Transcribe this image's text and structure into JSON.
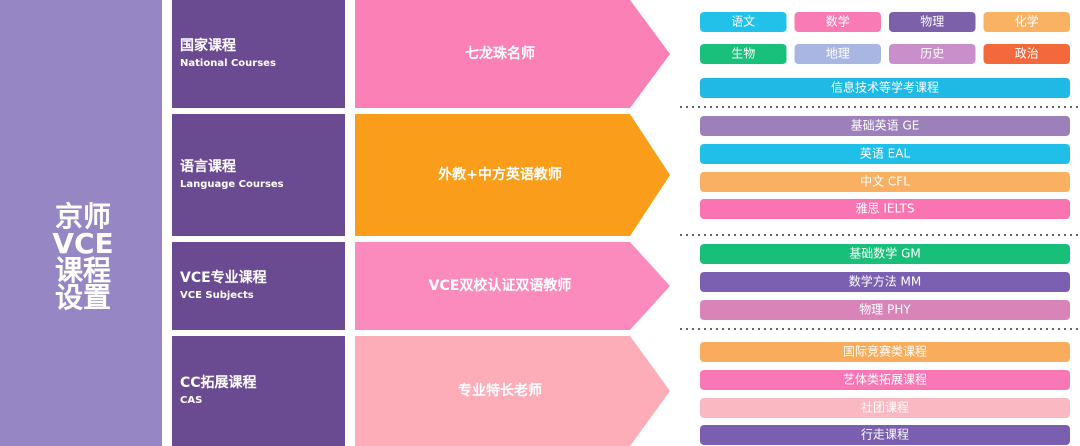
{
  "title": "京师VCE课程设置",
  "rows": [
    {
      "name": "国家课程",
      "name_en": "National Courses",
      "teacher": "七龙珠名师",
      "courses": [
        [
          "语文",
          "数学",
          "物理",
          "化学"
        ],
        [
          "生物",
          "地理",
          "历史",
          "政治"
        ],
        [
          "信息技术等学考课程"
        ]
      ]
    },
    {
      "name": "语言课程",
      "name_en": "Language Courses",
      "teacher": "外教+中方英语教师",
      "courses": [
        [
          "基础英语 GE"
        ],
        [
          "英语 EAL"
        ],
        [
          "中文 CFL"
        ],
        [
          "雅思 IELTS"
        ]
      ]
    },
    {
      "name": "VCE专业课程",
      "name_en": "VCE Subjects",
      "teacher": "VCE双校认证双语教师",
      "courses": [
        [
          "基础数学 GM"
        ],
        [
          "数学方法 MM"
        ],
        [
          "物理 PHY"
        ]
      ]
    },
    {
      "name": "CC拓展课程",
      "name_en": "CAS",
      "teacher": "专业特长老师",
      "courses": [
        [
          "国际竞赛类课程"
        ],
        [
          "艺体类拓展课程"
        ],
        [
          "社团课程"
        ],
        [
          "行走课程"
        ]
      ]
    }
  ]
}
